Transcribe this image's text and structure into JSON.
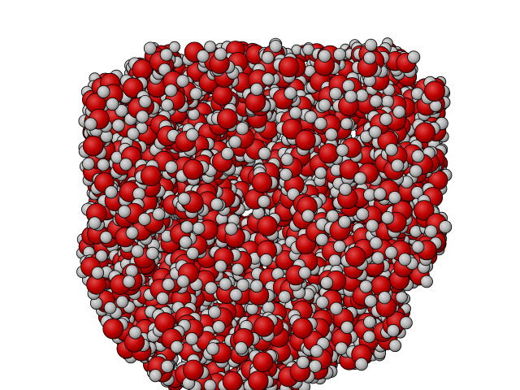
{
  "scene": {
    "subject": "water-molecule-box",
    "background_color": "#ffffff",
    "atom_colors": {
      "oxygen": "#c00000",
      "oxygen_shade": "#6e0000",
      "hydrogen": "#b4b4b4",
      "hydrogen_shade": "#6a6a6a",
      "outline": "#000000"
    }
  }
}
